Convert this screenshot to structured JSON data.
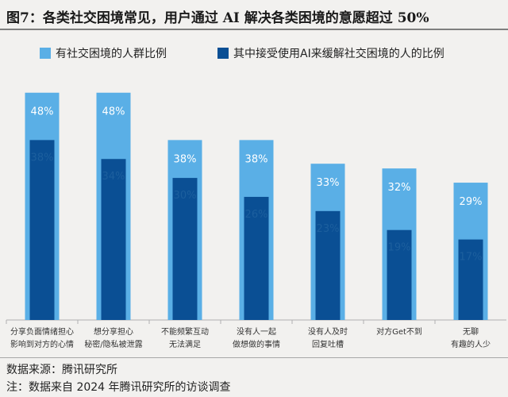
{
  "header": {
    "title": "图7：各类社交困境常见，用户通过 AI 解决各类困境的意愿超过 50%"
  },
  "colors": {
    "light": "#5aafe6",
    "dark": "#0a4f94",
    "axis": "#b0b0b0"
  },
  "chart_data": {
    "type": "bar",
    "categories": [
      [
        "分享负面情绪担心",
        "影响到对方的心情"
      ],
      [
        "想分享担心",
        "秘密/隐私被泄露"
      ],
      [
        "不能频繁互动",
        "无法满足"
      ],
      [
        "没有人一起",
        "做想做的事情"
      ],
      [
        "没有人及时",
        "回复吐槽"
      ],
      [
        "对方Get不到"
      ],
      [
        "无聊",
        "有趣的人少"
      ]
    ],
    "series": [
      {
        "name": "有社交困境的人群比例",
        "values": [
          48,
          48,
          38,
          38,
          33,
          32,
          29
        ],
        "labels": [
          "48%",
          "48%",
          "38%",
          "38%",
          "33%",
          "32%",
          "29%"
        ]
      },
      {
        "name": "其中接受使用AI来缓解社交困境的人的比例",
        "values": [
          38,
          34,
          30,
          26,
          23,
          19,
          17
        ],
        "labels": [
          "38%",
          "34%",
          "30%",
          "26%",
          "23%",
          "19%",
          "17%"
        ]
      }
    ],
    "ylim": [
      0,
      55
    ],
    "legend": "top"
  },
  "footer": {
    "source": "数据来源：腾讯研究所",
    "note": "注：数据来自 2024 年腾讯研究所的访谈调查"
  }
}
